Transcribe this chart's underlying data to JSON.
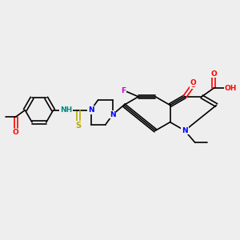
{
  "background_color": "#eeeeee",
  "bond_color": "#000000",
  "atom_colors": {
    "N": "#0000ff",
    "O": "#ff0000",
    "F": "#cc00cc",
    "S": "#bbaa00",
    "H": "#008888",
    "C": "#000000"
  },
  "figsize": [
    3.0,
    3.0
  ],
  "dpi": 100
}
